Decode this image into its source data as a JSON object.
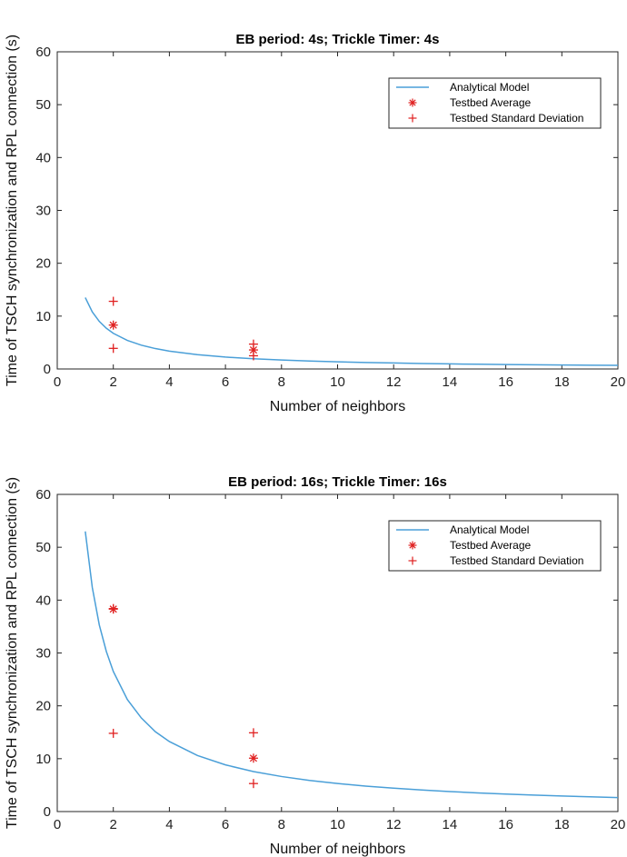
{
  "chart_data": [
    {
      "type": "line",
      "title": "EB period: 4s; Trickle Timer: 4s",
      "xlabel": "Number of neighbors",
      "ylabel": "Time of TSCH synchronization and RPL connection (s)",
      "xlim": [
        0,
        20
      ],
      "ylim": [
        0,
        60
      ],
      "xticks": [
        "0",
        "2",
        "4",
        "6",
        "8",
        "10",
        "12",
        "14",
        "16",
        "18",
        "20"
      ],
      "yticks": [
        "0",
        "10",
        "20",
        "30",
        "40",
        "50",
        "60"
      ],
      "grid": false,
      "legend_position": "top-right",
      "series": [
        {
          "name": "Analytical Model",
          "kind": "line",
          "color": "#4a9fd8",
          "x": [
            1,
            1.25,
            1.5,
            1.75,
            2,
            2.5,
            3,
            3.5,
            4,
            5,
            6,
            7,
            8,
            9,
            10,
            11,
            12,
            13,
            14,
            15,
            16,
            17,
            18,
            19,
            20
          ],
          "y": [
            13.5,
            10.8,
            9.0,
            7.71,
            6.75,
            5.4,
            4.5,
            3.86,
            3.38,
            2.7,
            2.25,
            1.93,
            1.69,
            1.5,
            1.35,
            1.23,
            1.13,
            1.04,
            0.96,
            0.9,
            0.84,
            0.79,
            0.75,
            0.71,
            0.68
          ]
        },
        {
          "name": "Testbed Average",
          "kind": "asterisk",
          "color": "#e02020",
          "x": [
            2,
            7
          ],
          "y": [
            8.3,
            3.6
          ]
        },
        {
          "name": "Testbed Standard Deviation",
          "kind": "plus",
          "color": "#e02020",
          "x": [
            2,
            2,
            7,
            7
          ],
          "y": [
            12.8,
            3.9,
            4.7,
            2.5
          ]
        }
      ]
    },
    {
      "type": "line",
      "title": "EB period: 16s; Trickle Timer: 16s",
      "xlabel": "Number of neighbors",
      "ylabel": "Time of TSCH synchronization and RPL connection (s)",
      "xlim": [
        0,
        20
      ],
      "ylim": [
        0,
        60
      ],
      "xticks": [
        "0",
        "2",
        "4",
        "6",
        "8",
        "10",
        "12",
        "14",
        "16",
        "18",
        "20"
      ],
      "yticks": [
        "0",
        "10",
        "20",
        "30",
        "40",
        "50",
        "60"
      ],
      "grid": false,
      "legend_position": "top-right",
      "series": [
        {
          "name": "Analytical Model",
          "kind": "line",
          "color": "#4a9fd8",
          "x": [
            1,
            1.25,
            1.5,
            1.75,
            2,
            2.5,
            3,
            3.5,
            4,
            5,
            6,
            7,
            8,
            9,
            10,
            11,
            12,
            13,
            14,
            15,
            16,
            17,
            18,
            19,
            20
          ],
          "y": [
            53,
            42.4,
            35.3,
            30.3,
            26.5,
            21.2,
            17.7,
            15.1,
            13.25,
            10.6,
            8.83,
            7.57,
            6.63,
            5.89,
            5.3,
            4.82,
            4.42,
            4.08,
            3.79,
            3.53,
            3.31,
            3.12,
            2.94,
            2.79,
            2.65
          ]
        },
        {
          "name": "Testbed Average",
          "kind": "asterisk",
          "color": "#e02020",
          "x": [
            2,
            7
          ],
          "y": [
            38.3,
            10.1
          ]
        },
        {
          "name": "Testbed Standard Deviation",
          "kind": "plus",
          "color": "#e02020",
          "x": [
            2,
            2,
            7,
            7
          ],
          "y": [
            38.4,
            14.8,
            14.9,
            5.3
          ]
        }
      ]
    }
  ]
}
